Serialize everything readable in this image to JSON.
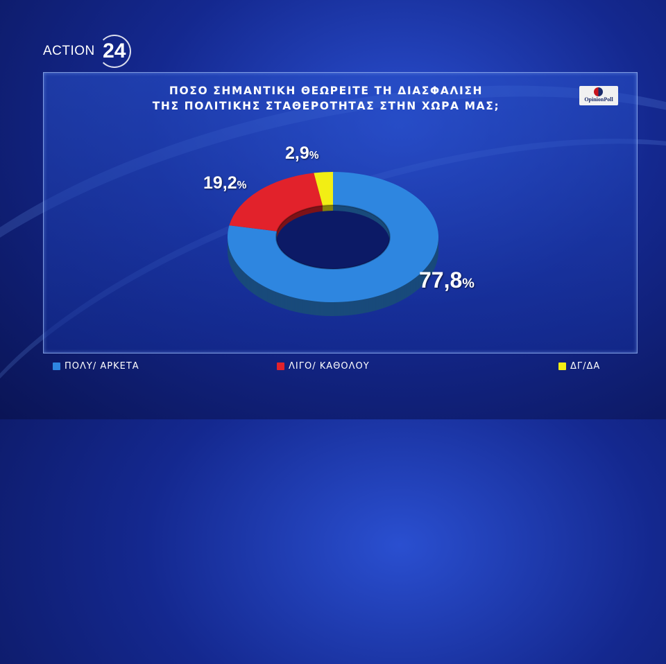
{
  "brand": {
    "logo_text": "ACTION",
    "logo_number": "24"
  },
  "poll_badge": {
    "label": "OpinionPoll"
  },
  "chart_data": {
    "type": "pie",
    "title_lines": [
      "ΠΟΣΟ ΣΗΜΑΝΤΙΚΗ ΘΕΩΡΕΙΤΕ ΤΗ ΔΙΑΣΦΑΛΙΣΗ",
      "ΤΗΣ ΠΟΛΙΤΙΚΗΣ ΣΤΑΘΕΡΟΤΗΤΑΣ ΣΤΗΝ ΧΩΡΑ ΜΑΣ;"
    ],
    "categories": [
      "ΠΟΛΥ/ ΑΡΚΕΤΑ",
      "ΛΙΓΟ/ ΚΑΘΟΛΟΥ",
      "ΔΓ/ΔΑ"
    ],
    "values": [
      77.8,
      19.2,
      2.9
    ],
    "value_labels": [
      "77,8",
      "19,2",
      "2,9"
    ],
    "unit": "%",
    "colors": [
      "#2e86e0",
      "#e2222b",
      "#f2ee14"
    ],
    "donut": true,
    "legend_position": "bottom"
  }
}
